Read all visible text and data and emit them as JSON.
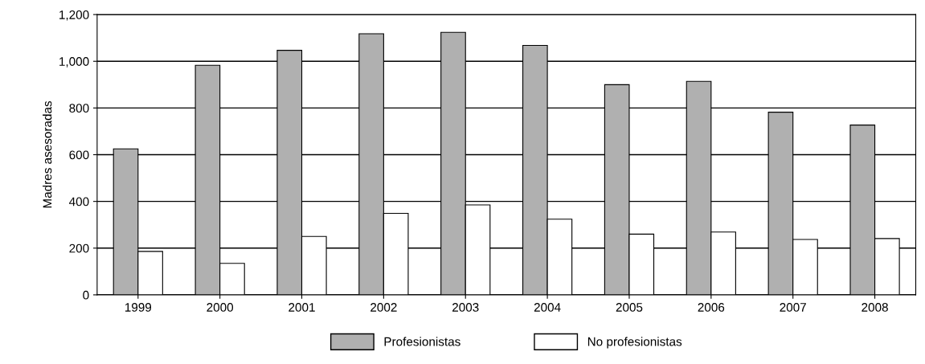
{
  "chart_data": {
    "type": "bar",
    "ylabel": "Madres asesoradas",
    "categories": [
      "1999",
      "2000",
      "2001",
      "2002",
      "2003",
      "2004",
      "2005",
      "2006",
      "2007",
      "2008"
    ],
    "series": [
      {
        "name": "Profesionistas",
        "color": "#b0b0b0",
        "values": [
          625,
          983,
          1047,
          1118,
          1124,
          1068,
          900,
          914,
          782,
          727
        ]
      },
      {
        "name": "No profesionistas",
        "color": "#ffffff",
        "values": [
          186,
          135,
          250,
          349,
          385,
          324,
          260,
          269,
          237,
          241
        ]
      }
    ],
    "ylim": [
      0,
      1200
    ],
    "yticks": [
      0,
      200,
      400,
      600,
      800,
      {
        "value": 1000,
        "label": "1,000"
      },
      {
        "value": 1200,
        "label": "1,200"
      }
    ],
    "grid": "y",
    "legend": "bottom"
  }
}
